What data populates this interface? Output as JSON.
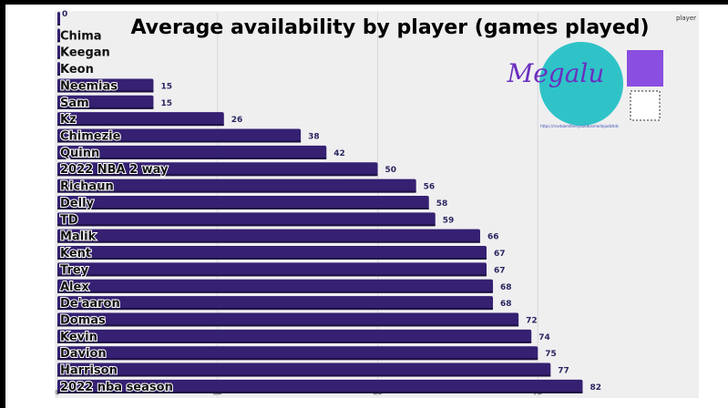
{
  "chart_data": {
    "type": "bar",
    "orientation": "horizontal",
    "title": "Average availability by player (games played)",
    "legend_label": "player",
    "categories": [
      "",
      "Chima",
      "Keegan",
      "Keon",
      "Neemias",
      "Sam",
      "Kz",
      "Chimezie",
      "Quinn",
      "2022 NBA 2 way",
      "Richaun",
      "Delly",
      "TD",
      "Malik",
      "Kent",
      "Trey",
      "Alex",
      "De'aaron",
      "Domas",
      "Kevin",
      "Davion",
      "Harrison",
      "2022 nba season"
    ],
    "values": [
      0,
      0,
      0,
      0,
      15,
      15,
      26,
      38,
      42,
      50,
      56,
      58,
      59,
      66,
      67,
      67,
      68,
      68,
      72,
      74,
      75,
      77,
      82
    ],
    "data_labels": [
      "0",
      "",
      "",
      "",
      "15",
      "15",
      "26",
      "38",
      "42",
      "50",
      "56",
      "58",
      "59",
      "66",
      "67",
      "67",
      "68",
      "68",
      "72",
      "74",
      "75",
      "77",
      "82"
    ],
    "xticks": [
      0,
      25,
      50,
      75
    ],
    "xlim": [
      0,
      100
    ],
    "grid": true,
    "bar_color": "#352072",
    "logo": {
      "text": "Megalu",
      "url_text": "https://rsvdobmthenyoukdosme/dojodzhds"
    }
  }
}
